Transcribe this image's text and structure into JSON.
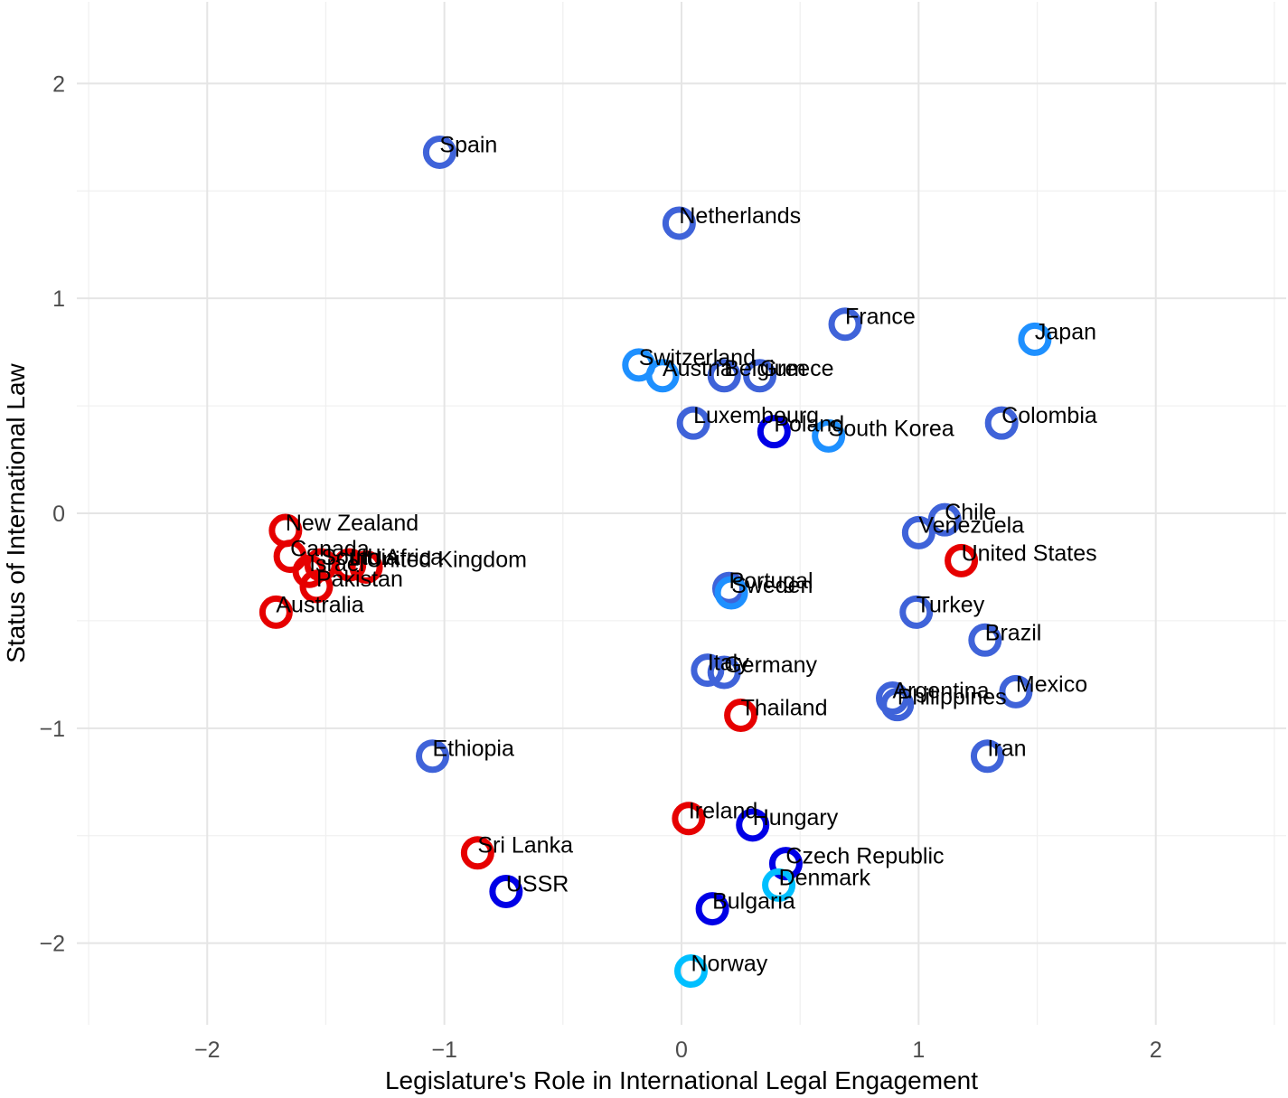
{
  "chart_data": {
    "type": "scatter",
    "title": "",
    "xlabel": "Legislature's Role in International Legal Engagement",
    "ylabel": "Status of International Law",
    "xlim": [
      -2.55,
      2.55
    ],
    "ylim": [
      -2.38,
      2.38
    ],
    "x_ticks": [
      -2,
      -1,
      0,
      1,
      2
    ],
    "y_ticks": [
      -2,
      -1,
      0,
      1,
      2
    ],
    "x_tick_labels": [
      "−2",
      "−1",
      "0",
      "1",
      "2"
    ],
    "y_tick_labels": [
      "−2",
      "−1",
      "0",
      "1",
      "2"
    ],
    "grid": true,
    "legend": "none",
    "marker": "open-circle",
    "points": [
      {
        "label": "Spain",
        "x": -1.02,
        "y": 1.68,
        "color": "#3f63d9"
      },
      {
        "label": "Netherlands",
        "x": -0.01,
        "y": 1.35,
        "color": "#3f63d9"
      },
      {
        "label": "France",
        "x": 0.69,
        "y": 0.88,
        "color": "#3f63d9"
      },
      {
        "label": "Japan",
        "x": 1.49,
        "y": 0.81,
        "color": "#1e90ff"
      },
      {
        "label": "Switzerland",
        "x": -0.18,
        "y": 0.69,
        "color": "#1e90ff"
      },
      {
        "label": "Austria",
        "x": -0.08,
        "y": 0.64,
        "color": "#1e90ff"
      },
      {
        "label": "Belgium",
        "x": 0.18,
        "y": 0.64,
        "color": "#3f63d9"
      },
      {
        "label": "Greece",
        "x": 0.33,
        "y": 0.64,
        "color": "#3f63d9"
      },
      {
        "label": "Luxembourg",
        "x": 0.05,
        "y": 0.42,
        "color": "#3f63d9"
      },
      {
        "label": "Poland",
        "x": 0.39,
        "y": 0.38,
        "color": "#0000e6"
      },
      {
        "label": "South Korea",
        "x": 0.62,
        "y": 0.36,
        "color": "#1e90ff"
      },
      {
        "label": "Colombia",
        "x": 1.35,
        "y": 0.42,
        "color": "#3f63d9"
      },
      {
        "label": "Chile",
        "x": 1.11,
        "y": -0.03,
        "color": "#3f63d9"
      },
      {
        "label": "Venezuela",
        "x": 1.0,
        "y": -0.09,
        "color": "#3f63d9"
      },
      {
        "label": "United States",
        "x": 1.18,
        "y": -0.22,
        "color": "#e60000"
      },
      {
        "label": "New Zealand",
        "x": -1.67,
        "y": -0.08,
        "color": "#e60000"
      },
      {
        "label": "Canada",
        "x": -1.65,
        "y": -0.2,
        "color": "#e60000"
      },
      {
        "label": "South Africa",
        "x": -1.52,
        "y": -0.24,
        "color": "#e60000"
      },
      {
        "label": "India",
        "x": -1.4,
        "y": -0.24,
        "color": "#e60000"
      },
      {
        "label": "United Kingdom",
        "x": -1.33,
        "y": -0.25,
        "color": "#e60000"
      },
      {
        "label": "Israel",
        "x": -1.57,
        "y": -0.27,
        "color": "#e60000"
      },
      {
        "label": "Pakistan",
        "x": -1.54,
        "y": -0.34,
        "color": "#e60000"
      },
      {
        "label": "Australia",
        "x": -1.71,
        "y": -0.46,
        "color": "#e60000"
      },
      {
        "label": "Portugal",
        "x": 0.2,
        "y": -0.35,
        "color": "#3f63d9"
      },
      {
        "label": "Sweden",
        "x": 0.21,
        "y": -0.37,
        "color": "#1e90ff"
      },
      {
        "label": "Turkey",
        "x": 0.99,
        "y": -0.46,
        "color": "#3f63d9"
      },
      {
        "label": "Brazil",
        "x": 1.28,
        "y": -0.59,
        "color": "#3f63d9"
      },
      {
        "label": "Italy",
        "x": 0.11,
        "y": -0.73,
        "color": "#3f63d9"
      },
      {
        "label": "Germany",
        "x": 0.18,
        "y": -0.74,
        "color": "#3f63d9"
      },
      {
        "label": "Argentina",
        "x": 0.89,
        "y": -0.86,
        "color": "#3f63d9"
      },
      {
        "label": "Philippines",
        "x": 0.91,
        "y": -0.89,
        "color": "#3f63d9"
      },
      {
        "label": "Mexico",
        "x": 1.41,
        "y": -0.83,
        "color": "#3f63d9"
      },
      {
        "label": "Thailand",
        "x": 0.25,
        "y": -0.94,
        "color": "#e60000"
      },
      {
        "label": "Ethiopia",
        "x": -1.05,
        "y": -1.13,
        "color": "#3f63d9"
      },
      {
        "label": "Iran",
        "x": 1.29,
        "y": -1.13,
        "color": "#3f63d9"
      },
      {
        "label": "Ireland",
        "x": 0.03,
        "y": -1.42,
        "color": "#e60000"
      },
      {
        "label": "Hungary",
        "x": 0.3,
        "y": -1.45,
        "color": "#0000e6"
      },
      {
        "label": "Sri Lanka",
        "x": -0.86,
        "y": -1.58,
        "color": "#e60000"
      },
      {
        "label": "Czech Republic",
        "x": 0.44,
        "y": -1.63,
        "color": "#0000e6"
      },
      {
        "label": "Denmark",
        "x": 0.41,
        "y": -1.73,
        "color": "#00bfff"
      },
      {
        "label": "USSR",
        "x": -0.74,
        "y": -1.76,
        "color": "#0000e6"
      },
      {
        "label": "Bulgaria",
        "x": 0.13,
        "y": -1.84,
        "color": "#0000e6"
      },
      {
        "label": "Norway",
        "x": 0.04,
        "y": -2.13,
        "color": "#00bfff"
      }
    ]
  }
}
